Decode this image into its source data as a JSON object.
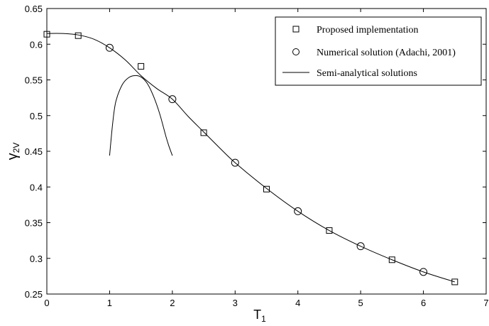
{
  "chart_data": {
    "type": "line",
    "xlabel": "T",
    "xlabel_sub": "1",
    "ylabel": "γ",
    "ylabel_sub": "2V",
    "xlim": [
      0,
      7
    ],
    "ylim": [
      0.25,
      0.65
    ],
    "xticks": [
      0,
      1,
      2,
      3,
      4,
      5,
      6,
      7
    ],
    "yticks": [
      0.25,
      0.3,
      0.35,
      0.4,
      0.45,
      0.5,
      0.55,
      0.6,
      0.65
    ],
    "grid": false,
    "legend_position": "top-right",
    "series": [
      {
        "name": "Proposed implementation",
        "marker": "square",
        "x": [
          0,
          0.5,
          1.5,
          2.5,
          3.5,
          4.5,
          5.5,
          6.5
        ],
        "y": [
          0.614,
          0.612,
          0.569,
          0.476,
          0.397,
          0.339,
          0.298,
          0.267
        ]
      },
      {
        "name": "Numerical solution (Adachi, 2001)",
        "marker": "circle",
        "x": [
          1,
          2,
          3,
          4,
          5,
          6
        ],
        "y": [
          0.595,
          0.523,
          0.434,
          0.366,
          0.317,
          0.281
        ]
      },
      {
        "name": "Semi-analytical solutions",
        "marker": "line",
        "x": [
          0,
          0.25,
          0.5,
          0.75,
          1,
          1.25,
          1.5,
          1.75,
          2,
          2.25,
          2.5,
          2.75,
          3,
          3.5,
          4,
          4.5,
          5,
          5.5,
          6,
          6.5
        ],
        "y": [
          0.615,
          0.615,
          0.613,
          0.607,
          0.595,
          0.578,
          0.556,
          0.538,
          0.523,
          0.499,
          0.477,
          0.455,
          0.434,
          0.398,
          0.366,
          0.339,
          0.317,
          0.298,
          0.281,
          0.267
        ]
      },
      {
        "name": "",
        "marker": "line",
        "x": [
          1,
          1.05,
          1.1,
          1.2,
          1.3,
          1.4,
          1.5,
          1.6,
          1.7,
          1.8,
          1.9,
          1.95,
          2
        ],
        "y": [
          0.444,
          0.49,
          0.52,
          0.543,
          0.553,
          0.556,
          0.554,
          0.545,
          0.527,
          0.502,
          0.47,
          0.456,
          0.444
        ]
      }
    ]
  }
}
